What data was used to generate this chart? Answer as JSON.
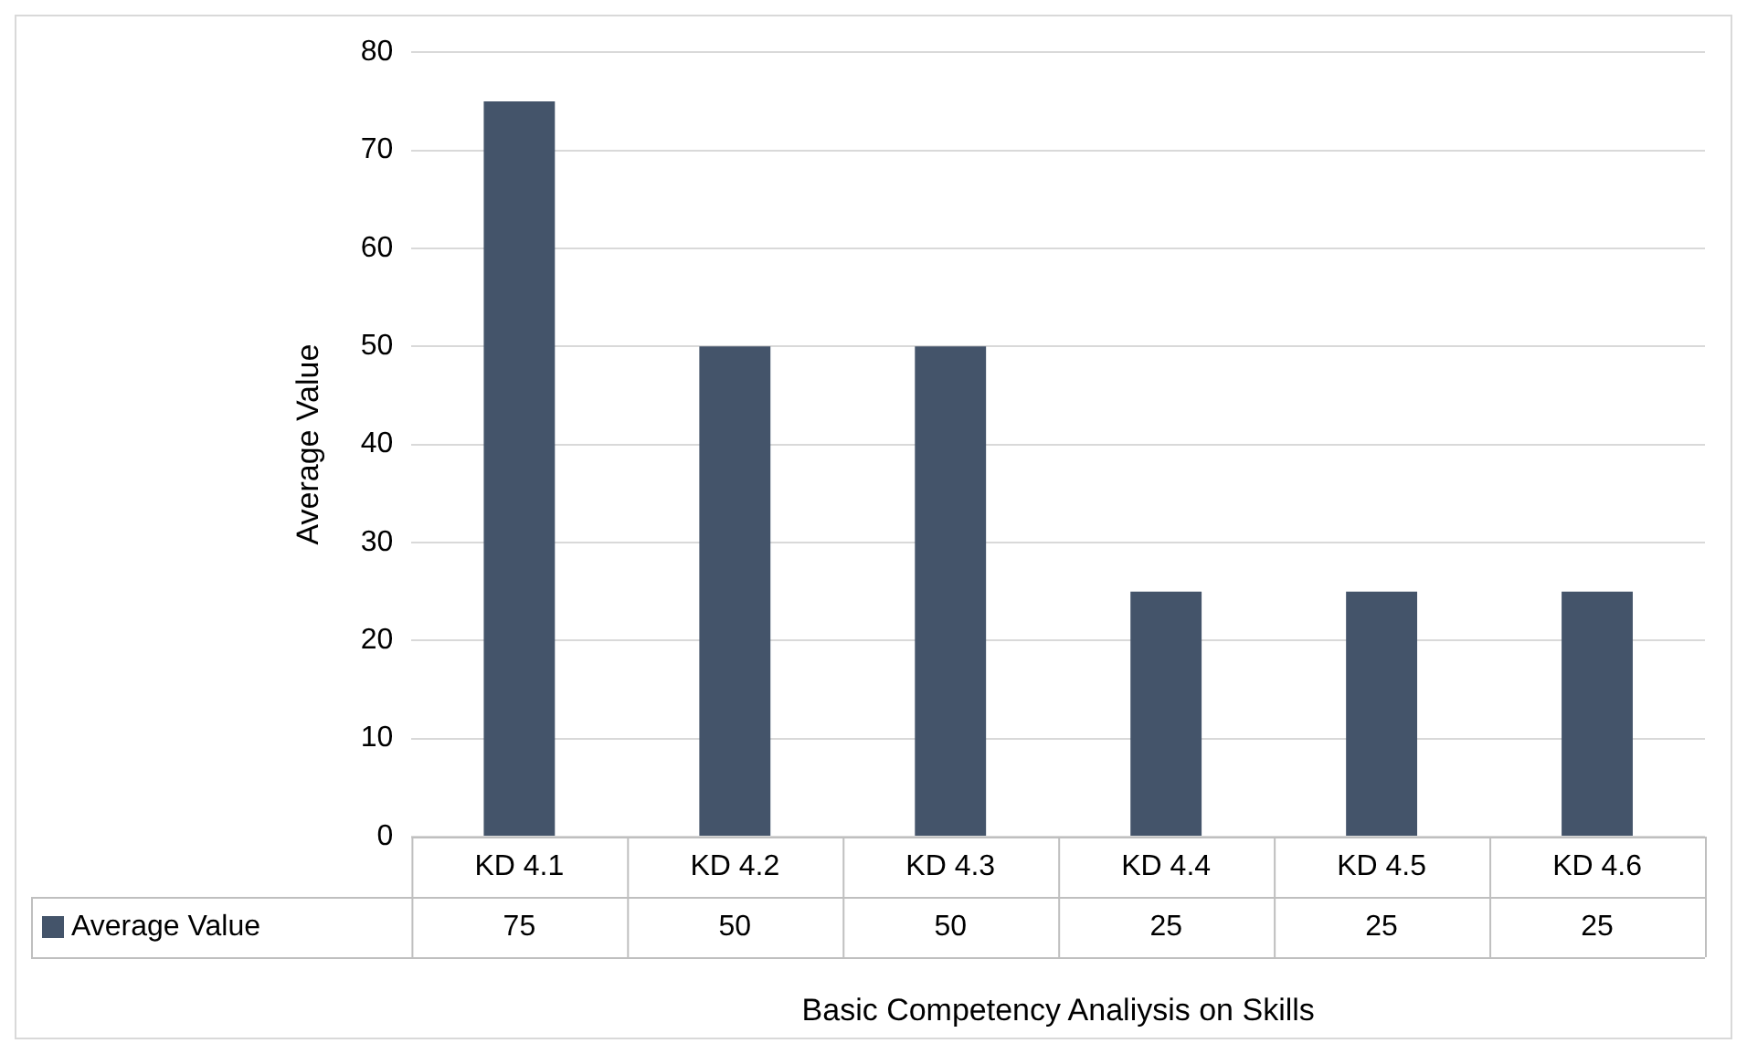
{
  "chart_data": {
    "type": "bar",
    "xlabel": "Basic Competency Analiysis on Skills",
    "ylabel": "Average Value",
    "categories": [
      "KD 4.1",
      "KD 4.2",
      "KD 4.3",
      "KD 4.4",
      "KD 4.5",
      "KD 4.6"
    ],
    "series": [
      {
        "name": "Average Value",
        "color": "#44546a",
        "values": [
          75,
          50,
          50,
          25,
          25,
          25
        ]
      }
    ],
    "ylim": [
      0,
      80
    ],
    "yticks": [
      0,
      10,
      20,
      30,
      40,
      50,
      60,
      70,
      80
    ],
    "grid": "y",
    "legend": "bottom",
    "data_labels": true
  }
}
